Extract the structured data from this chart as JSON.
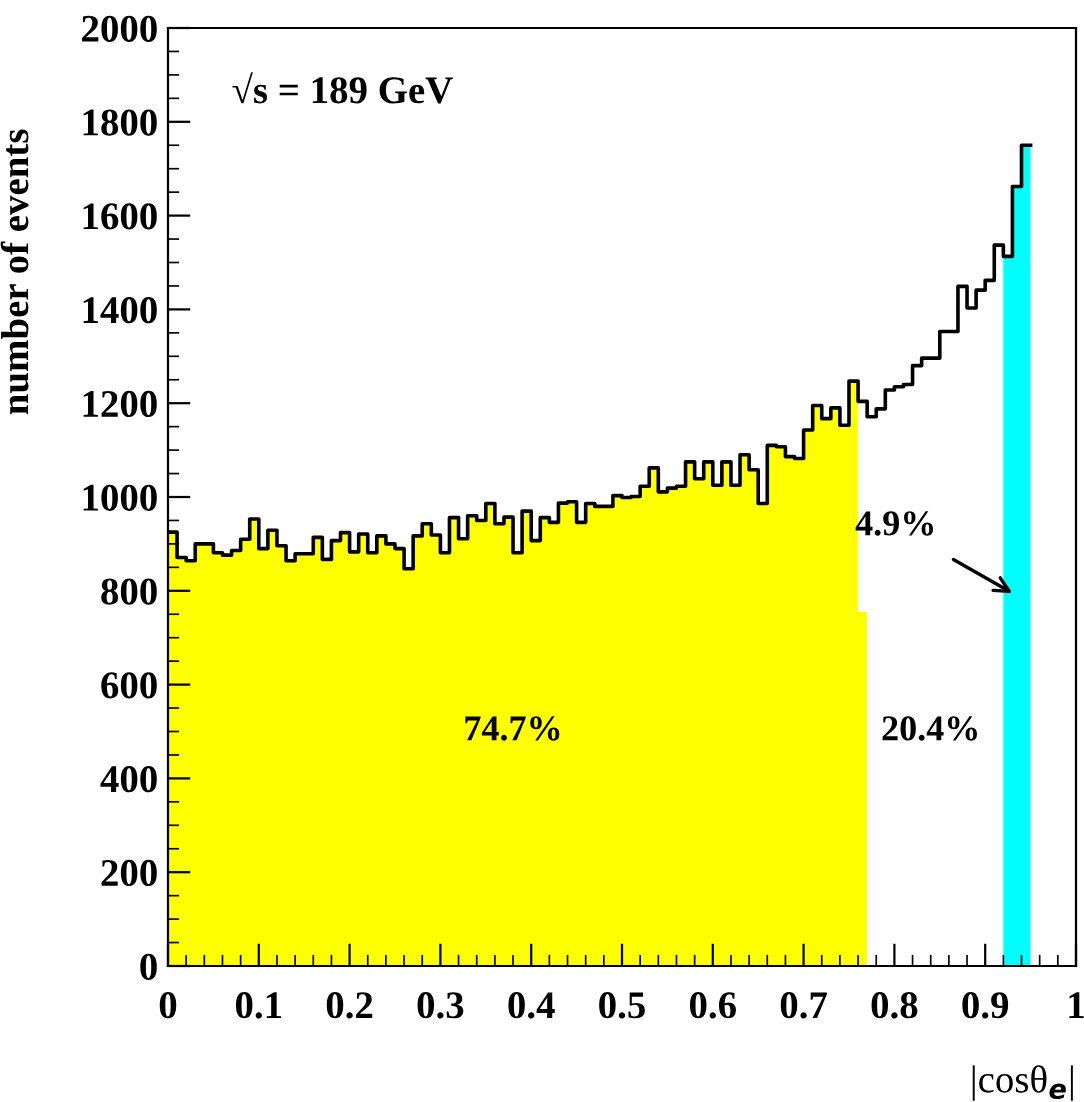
{
  "chart_data": {
    "type": "histogram",
    "xlabel": "|cosθ$_{e}$|",
    "ylabel": "number of events",
    "series": [
      {
        "color": "#ffff00",
        "bins": [
          0,
          0.01,
          0.02,
          0.03,
          0.04,
          0.05,
          0.06,
          0.07,
          0.08,
          0.09,
          0.1,
          0.11,
          0.12,
          0.13,
          0.14,
          0.15,
          0.16,
          0.17,
          0.18,
          0.19,
          0.2,
          0.21,
          0.22,
          0.23,
          0.24,
          0.25,
          0.26,
          0.27,
          0.28,
          0.29,
          0.3,
          0.31,
          0.32,
          0.33,
          0.34,
          0.35,
          0.36,
          0.37,
          0.38,
          0.39,
          0.4,
          0.41,
          0.42,
          0.43,
          0.44,
          0.45,
          0.46,
          0.47,
          0.48,
          0.49,
          0.5,
          0.51,
          0.52,
          0.53,
          0.54,
          0.55,
          0.56,
          0.57,
          0.58,
          0.59,
          0.6,
          0.61,
          0.62,
          0.63,
          0.64,
          0.65,
          0.66,
          0.67,
          0.68,
          0.69,
          0.7,
          0.71,
          0.72,
          0.73,
          0.74,
          0.75,
          0.76,
          0.77
        ],
        "values": [
          925,
          871,
          864,
          900,
          900,
          881,
          876,
          886,
          910,
          953,
          890,
          929,
          896,
          864,
          879,
          879,
          914,
          867,
          907,
          924,
          883,
          921,
          881,
          917,
          900,
          890,
          847,
          917,
          943,
          919,
          881,
          956,
          911,
          960,
          950,
          986,
          943,
          957,
          881,
          970,
          907,
          956,
          946,
          987,
          990,
          946,
          986,
          980,
          980,
          1003,
          999,
          1001,
          1023,
          1062,
          1011,
          1019,
          1023,
          1075,
          1039,
          1075,
          1025,
          1075,
          1025,
          1090,
          1058,
          986,
          1110,
          1107,
          1086,
          1082,
          1143,
          1195,
          1167,
          1190,
          1153,
          1247,
          755
        ]
      },
      {
        "color": "#00ffff",
        "bins": [
          0.92,
          0.93,
          0.94,
          0.95
        ],
        "values": [
          1513,
          1662,
          1750
        ]
      },
      {
        "type": "step",
        "color": "#000000",
        "x": [
          0,
          0.01,
          0.02,
          0.03,
          0.04,
          0.05,
          0.06,
          0.07,
          0.08,
          0.09,
          0.1,
          0.11,
          0.12,
          0.13,
          0.14,
          0.15,
          0.16,
          0.17,
          0.18,
          0.19,
          0.2,
          0.21,
          0.22,
          0.23,
          0.24,
          0.25,
          0.26,
          0.27,
          0.28,
          0.29,
          0.3,
          0.31,
          0.32,
          0.33,
          0.34,
          0.35,
          0.36,
          0.37,
          0.38,
          0.39,
          0.4,
          0.41,
          0.42,
          0.43,
          0.44,
          0.45,
          0.46,
          0.47,
          0.48,
          0.49,
          0.5,
          0.51,
          0.52,
          0.53,
          0.54,
          0.55,
          0.56,
          0.57,
          0.58,
          0.59,
          0.6,
          0.61,
          0.62,
          0.63,
          0.64,
          0.65,
          0.66,
          0.67,
          0.68,
          0.69,
          0.7,
          0.71,
          0.72,
          0.73,
          0.74,
          0.75,
          0.76,
          0.77,
          0.78,
          0.79,
          0.8,
          0.81,
          0.82,
          0.83,
          0.84,
          0.85,
          0.86,
          0.87,
          0.88,
          0.89,
          0.9,
          0.91,
          0.92,
          0.93,
          0.94,
          0.95
        ],
        "values": [
          925,
          871,
          864,
          900,
          900,
          881,
          876,
          886,
          910,
          953,
          890,
          929,
          896,
          864,
          879,
          879,
          914,
          867,
          907,
          924,
          883,
          921,
          881,
          917,
          900,
          890,
          847,
          917,
          943,
          919,
          881,
          956,
          911,
          960,
          950,
          986,
          943,
          957,
          881,
          970,
          907,
          956,
          946,
          987,
          990,
          946,
          986,
          980,
          980,
          1003,
          999,
          1001,
          1023,
          1062,
          1011,
          1019,
          1023,
          1075,
          1039,
          1075,
          1025,
          1075,
          1025,
          1090,
          1058,
          986,
          1110,
          1107,
          1086,
          1082,
          1143,
          1195,
          1167,
          1190,
          1153,
          1247,
          1204,
          1171,
          1188,
          1228,
          1235,
          1240,
          1280,
          1296,
          1296,
          1353,
          1353,
          1449,
          1403,
          1441,
          1462,
          1537,
          1513,
          1662,
          1750,
          1750
        ]
      }
    ],
    "xlim": [
      0,
      1
    ],
    "ylim": [
      0,
      2000
    ],
    "xticks": [
      0,
      {
        "value": 0.1,
        "label": "0.1"
      },
      {
        "value": 0.2,
        "label": "0.2"
      },
      {
        "value": 0.3,
        "label": "0.3"
      },
      {
        "value": 0.4,
        "label": "0.4"
      },
      {
        "value": 0.5,
        "label": "0.5"
      },
      {
        "value": 0.6,
        "label": "0.6"
      },
      {
        "value": 0.7,
        "label": "0.7"
      },
      {
        "value": 0.8,
        "label": "0.8"
      },
      {
        "value": 0.9,
        "label": "0.9"
      },
      1
    ],
    "yticks": [
      0,
      200,
      400,
      600,
      800,
      1000,
      1200,
      1400,
      1600,
      1800,
      2000
    ],
    "annotations": [
      "√s = 189 GeV",
      "74.7%",
      "20.4%",
      {
        "text": "4.9%",
        "x": 0.93,
        "y": 795
      }
    ]
  }
}
